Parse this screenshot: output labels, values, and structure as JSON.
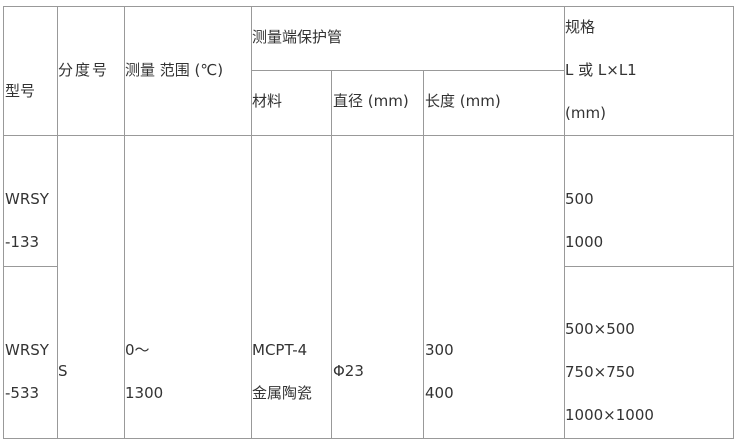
{
  "header": {
    "model": "型号",
    "graduation": "分度号",
    "range": "测量 范围 (℃)",
    "tube": "测量端保护管",
    "material": "材料",
    "diameter": "直径 (mm)",
    "length": "长度 (mm)",
    "spec_1": "规格",
    "spec_2": "L 或 L×L1",
    "spec_3": "(mm)"
  },
  "rows": [
    {
      "model_1": "WRSY",
      "model_2": "-133",
      "spec": [
        "500",
        "1000"
      ]
    },
    {
      "model_1": "WRSY",
      "model_2": "-533",
      "spec": [
        "500×500",
        "750×750",
        "1000×1000"
      ]
    }
  ],
  "shared": {
    "graduation": "S",
    "range_1": "0～",
    "range_2": "1300",
    "material_1": "MCPT-4",
    "material_2": "金属陶瓷",
    "diameter": "Φ23",
    "length_1": "300",
    "length_2": "400"
  }
}
